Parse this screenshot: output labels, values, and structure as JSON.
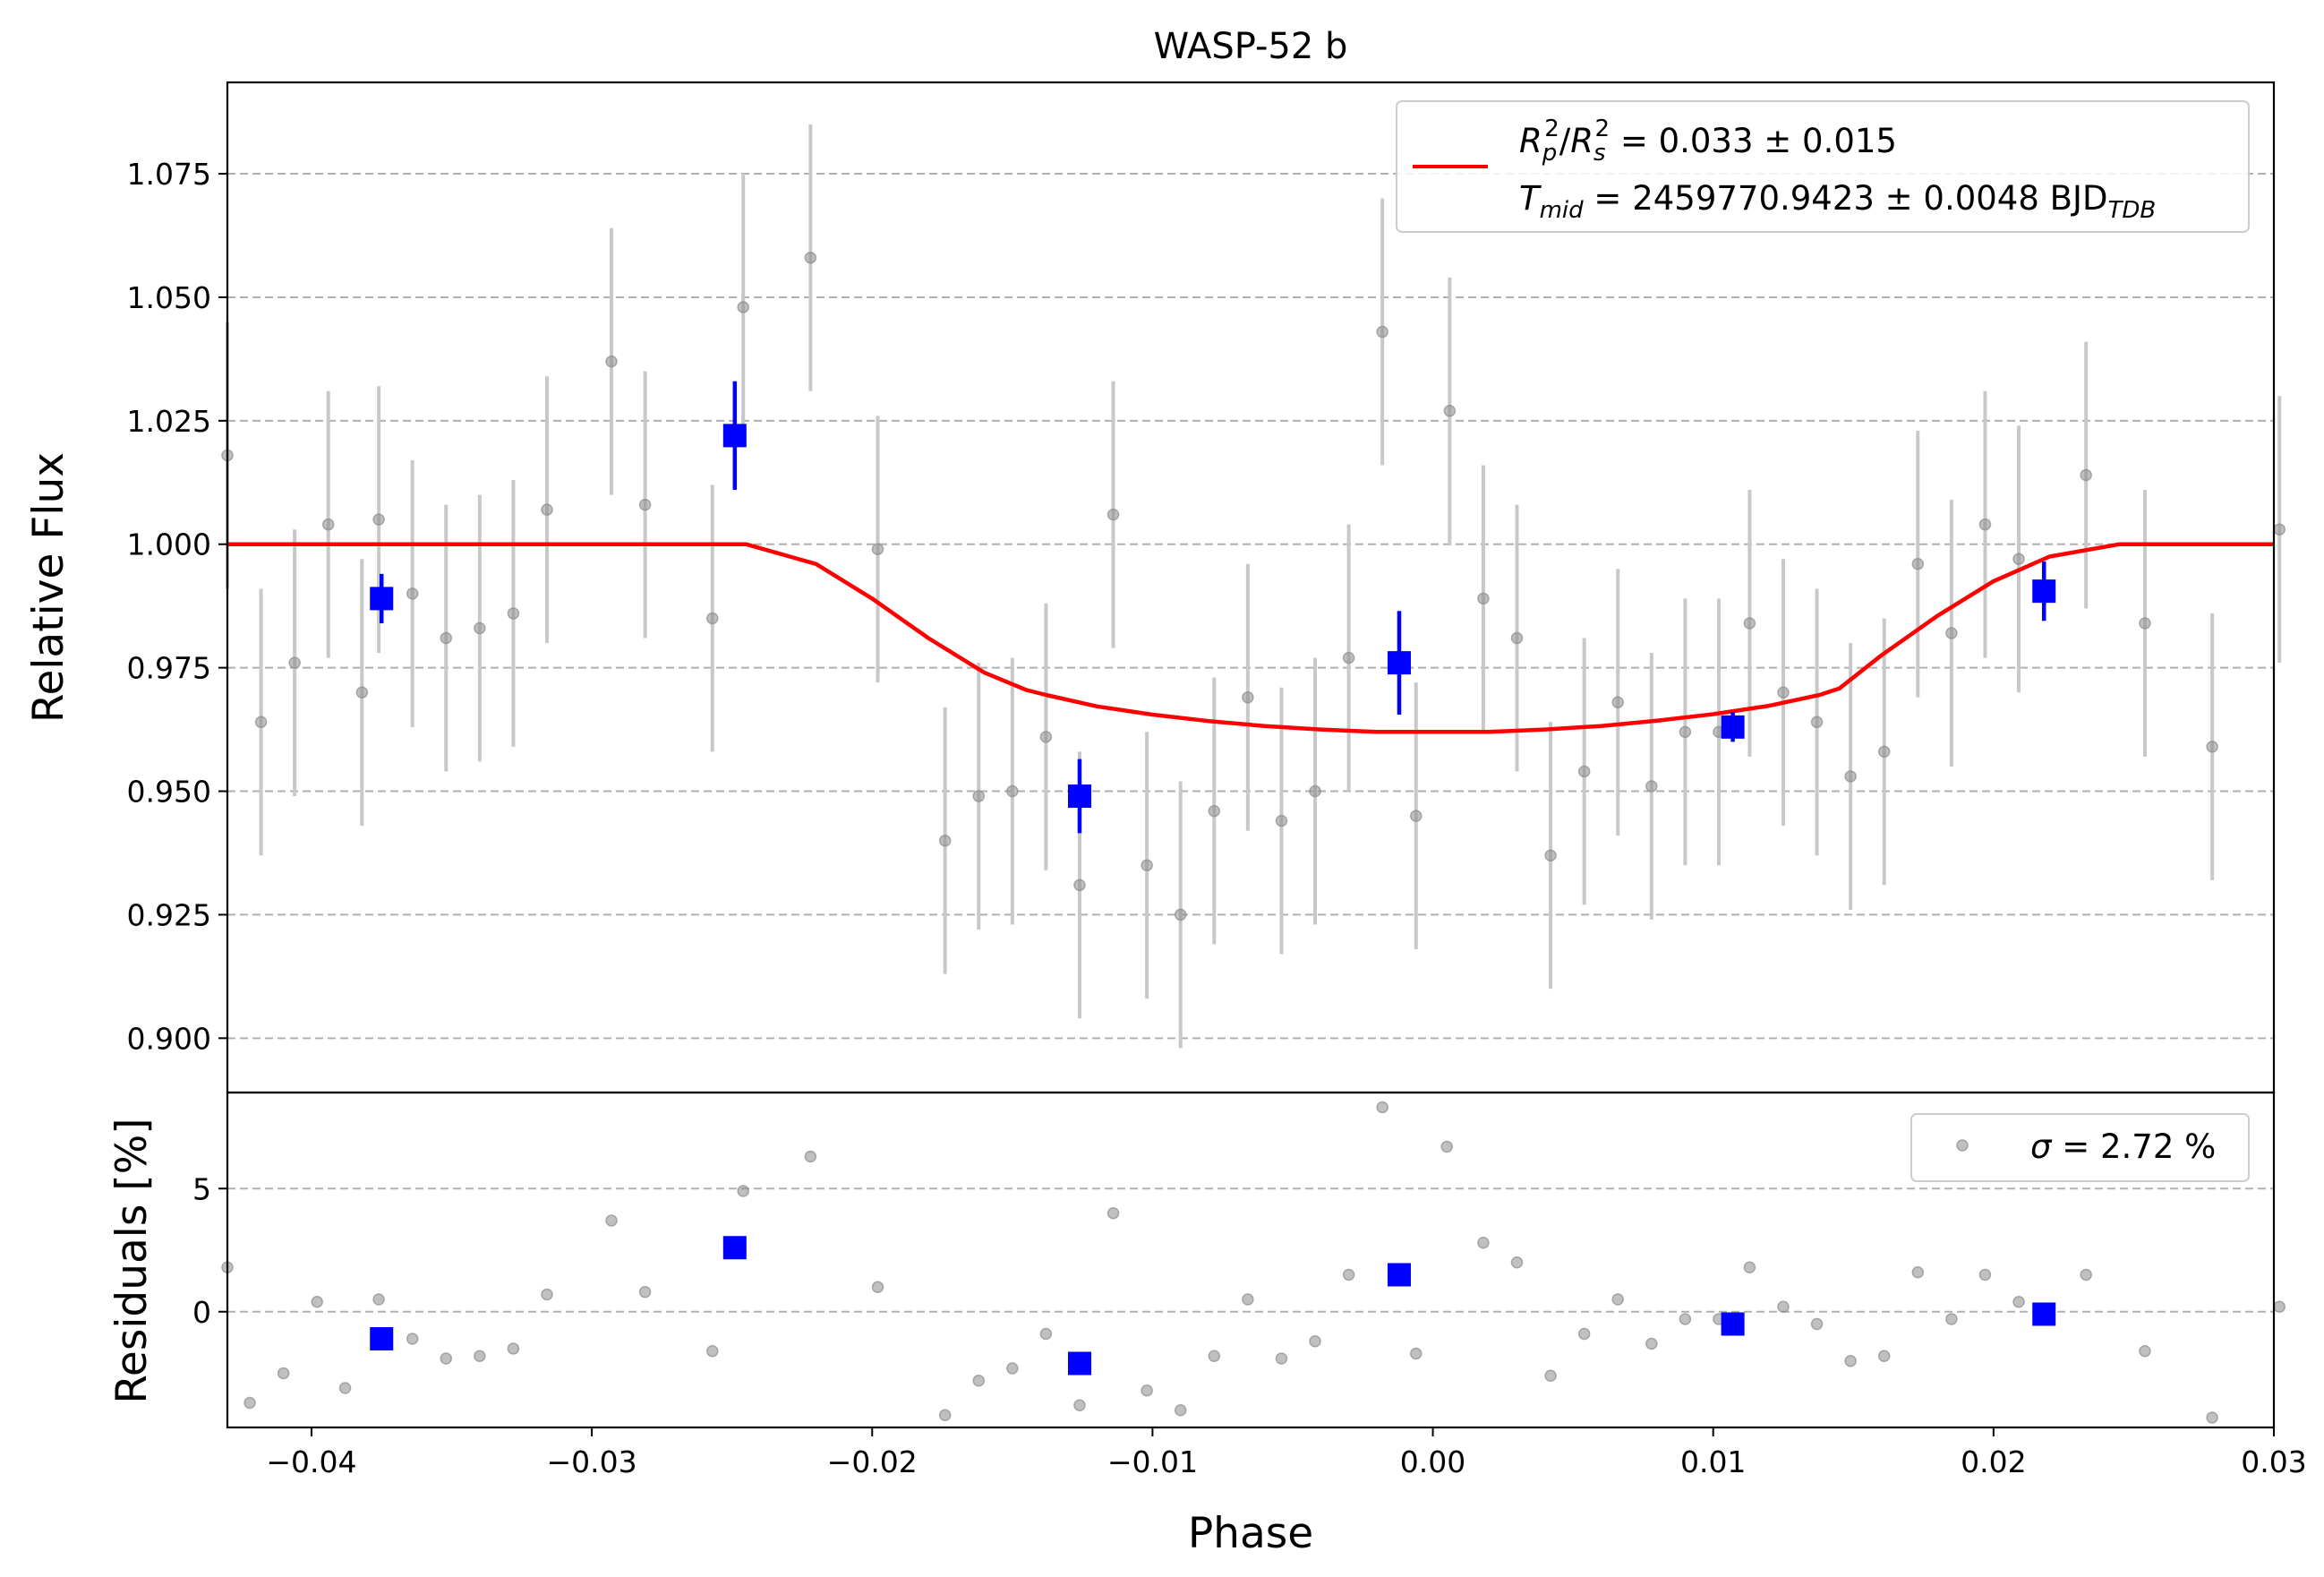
{
  "chart_data": {
    "type": "scatter",
    "title": "WASP-52 b",
    "xlabel": "Phase",
    "xlim": [
      -0.043,
      0.03
    ],
    "x_ticks": [
      -0.04,
      -0.03,
      -0.02,
      -0.01,
      0.0,
      0.01,
      0.02,
      0.03
    ],
    "x_tick_labels": [
      "−0.04",
      "−0.03",
      "−0.02",
      "−0.01",
      "0.00",
      "0.01",
      "0.02",
      "0.03"
    ],
    "grid": "horizontal dashed",
    "colors": {
      "raw": "#8c8c8c",
      "raw_err": "#c8c8c8",
      "binned": "#0000ff",
      "model": "#ff0000"
    },
    "main_panel": {
      "ylabel": "Relative Flux",
      "ylim": [
        0.889,
        1.0935
      ],
      "y_ticks": [
        0.9,
        0.925,
        0.95,
        0.975,
        1.0,
        1.025,
        1.05,
        1.075
      ],
      "y_tick_labels": [
        "0.900",
        "0.925",
        "0.950",
        "0.975",
        "1.000",
        "1.025",
        "1.050",
        "1.075"
      ],
      "legend": {
        "placement": "top-right",
        "line1": {
          "lhs_R": "R",
          "p_sub": "p",
          "sup1": "2",
          "slash": "/",
          "lhs_R2": "R",
          "s_sub": "s",
          "sup2": "2",
          "rhs": " = 0.033 ± 0.015"
        },
        "line2": {
          "T": "T",
          "mid_sub": "mid",
          "rhs": " = 2459770.9423 ± 0.0048 BJD",
          "tdb_sub": "TDB"
        }
      },
      "raw_points": {
        "x": [
          -0.043,
          -0.0418,
          -0.0406,
          -0.0394,
          -0.0382,
          -0.0376,
          -0.0364,
          -0.0352,
          -0.034,
          -0.0328,
          -0.0316,
          -0.0293,
          -0.0281,
          -0.0257,
          -0.0246,
          -0.0222,
          -0.0198,
          -0.0174,
          -0.0162,
          -0.015,
          -0.0138,
          -0.0126,
          -0.0102,
          -0.009,
          -0.0114,
          -0.0078,
          -0.0066,
          -0.0054,
          -0.0042,
          -0.003,
          -0.0018,
          -0.0006,
          0.0006,
          0.0018,
          0.003,
          0.0042,
          0.0054,
          0.0066,
          0.0078,
          0.009,
          0.0102,
          0.0113,
          0.0125,
          0.0137,
          0.0149,
          0.0161,
          0.0173,
          0.0185,
          0.0197,
          0.0209,
          0.0233,
          0.0254,
          0.0278,
          0.0302
        ],
        "y": [
          1.018,
          0.964,
          0.976,
          1.004,
          0.97,
          1.005,
          0.99,
          0.981,
          0.983,
          0.986,
          1.007,
          1.037,
          1.008,
          0.985,
          1.048,
          1.058,
          0.999,
          0.94,
          0.949,
          0.95,
          0.961,
          0.931,
          0.935,
          0.925,
          1.006,
          0.946,
          0.969,
          0.944,
          0.95,
          0.977,
          1.043,
          0.945,
          1.027,
          0.989,
          0.981,
          0.937,
          0.954,
          0.968,
          0.951,
          0.962,
          0.962,
          0.984,
          0.97,
          0.964,
          0.953,
          0.958,
          0.996,
          0.982,
          1.004,
          0.997,
          1.014,
          0.984,
          0.959,
          1.003
        ],
        "yerr": 0.027
      },
      "binned_points": {
        "x": [
          -0.0375,
          -0.0249,
          -0.0126,
          -0.0012,
          0.0107,
          0.0218
        ],
        "y": [
          0.989,
          1.022,
          0.949,
          0.976,
          0.963,
          0.9905
        ],
        "yerr": [
          0.005,
          0.011,
          0.0075,
          0.0105,
          0.003,
          0.006
        ]
      },
      "model_curve": {
        "x": [
          -0.043,
          -0.0245,
          -0.022,
          -0.02,
          -0.018,
          -0.016,
          -0.0145,
          -0.0138,
          -0.012,
          -0.01,
          -0.008,
          -0.006,
          -0.004,
          -0.002,
          0.0,
          0.002,
          0.004,
          0.006,
          0.008,
          0.01,
          0.012,
          0.0138,
          0.0145,
          0.016,
          0.018,
          0.02,
          0.022,
          0.0245,
          0.03
        ],
        "y": [
          1.0,
          1.0,
          0.996,
          0.989,
          0.981,
          0.974,
          0.9705,
          0.9695,
          0.9672,
          0.9655,
          0.9642,
          0.9632,
          0.9625,
          0.962,
          0.962,
          0.962,
          0.9625,
          0.9632,
          0.9643,
          0.9656,
          0.9673,
          0.9695,
          0.9708,
          0.9775,
          0.9855,
          0.9925,
          0.9975,
          1.0,
          1.0
        ]
      }
    },
    "residual_panel": {
      "ylabel": "Residuals [%]",
      "ylim": [
        -4.7,
        8.9
      ],
      "y_ticks": [
        0,
        5
      ],
      "y_tick_labels": [
        "0",
        "5"
      ],
      "legend": {
        "placement": "top-right",
        "sigma_symbol": "σ",
        "text": " = 2.72 %"
      },
      "raw_points": {
        "x": [
          -0.043,
          -0.0422,
          -0.041,
          -0.0398,
          -0.0388,
          -0.0376,
          -0.0364,
          -0.0352,
          -0.034,
          -0.0328,
          -0.0316,
          -0.0293,
          -0.0281,
          -0.0257,
          -0.0246,
          -0.0222,
          -0.0198,
          -0.0174,
          -0.0162,
          -0.015,
          -0.0138,
          -0.0126,
          -0.0102,
          -0.009,
          -0.0114,
          -0.0078,
          -0.0066,
          -0.0054,
          -0.0042,
          -0.003,
          -0.0018,
          -0.0006,
          0.0005,
          0.0018,
          0.003,
          0.0042,
          0.0054,
          0.0066,
          0.0078,
          0.009,
          0.0102,
          0.0113,
          0.0125,
          0.0137,
          0.0149,
          0.0161,
          0.0173,
          0.0185,
          0.0197,
          0.0209,
          0.0233,
          0.0254,
          0.0278,
          0.0302
        ],
        "y": [
          1.8,
          -3.7,
          -2.5,
          0.4,
          -3.1,
          0.5,
          -1.1,
          -1.9,
          -1.8,
          -1.5,
          0.7,
          3.7,
          0.8,
          -1.6,
          4.9,
          6.3,
          1.0,
          -4.2,
          -2.8,
          -2.3,
          -0.9,
          -3.8,
          -3.2,
          -4.0,
          4.0,
          -1.8,
          0.5,
          -1.9,
          -1.2,
          1.5,
          8.3,
          -1.7,
          6.7,
          2.8,
          2.0,
          -2.6,
          -0.9,
          0.5,
          -1.3,
          -0.3,
          -0.3,
          1.8,
          0.2,
          -0.5,
          -2.0,
          -1.8,
          1.6,
          -0.3,
          1.5,
          0.4,
          1.5,
          -1.6,
          -4.3,
          0.2
        ]
      },
      "binned_points": {
        "x": [
          -0.0375,
          -0.0249,
          -0.0126,
          -0.0012,
          0.0107,
          0.0218
        ],
        "y": [
          -1.1,
          2.6,
          -2.1,
          1.5,
          -0.5,
          -0.1
        ]
      }
    }
  }
}
